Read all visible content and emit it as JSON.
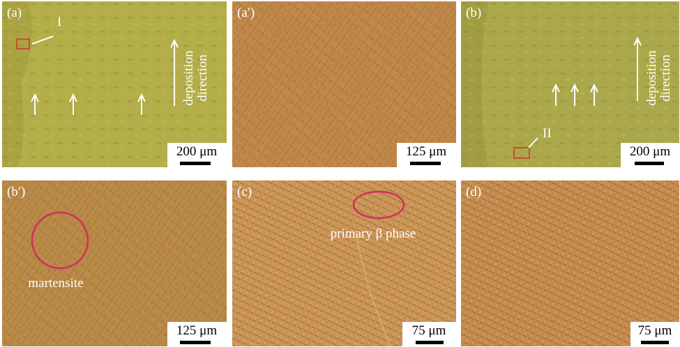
{
  "panels": [
    {
      "label": "(a)",
      "marker": "I",
      "direction": [
        "deposition",
        "direction"
      ],
      "scale": "200 μm"
    },
    {
      "label": "(a′)",
      "scale": "125 μm"
    },
    {
      "label": "(b)",
      "marker": "II",
      "direction": [
        "deposition",
        "direction"
      ],
      "scale": "200 μm"
    },
    {
      "label": "(b′)",
      "annotation": "martensite",
      "scale": "125 μm"
    },
    {
      "label": "(c)",
      "annotation": "primary β phase",
      "scale": "75 μm"
    },
    {
      "label": "(d)",
      "scale": "75 μm"
    }
  ]
}
